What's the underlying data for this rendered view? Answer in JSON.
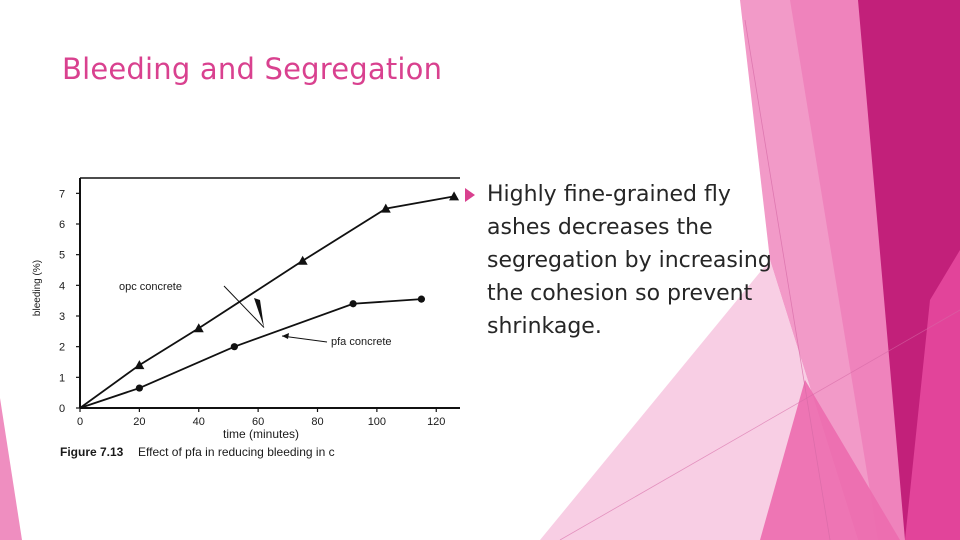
{
  "slide": {
    "title": "Bleeding and Segregation",
    "bullet_text": "Highly fine-grained fly ashes decreases the segregation by increasing the cohesion so prevent shrinkage.",
    "accent_color": "#d9418f"
  },
  "chart_data": {
    "type": "line",
    "title": "",
    "caption_label": "Figure 7.13",
    "caption_text": "Effect of pfa in reducing bleeding in c",
    "xlabel": "time (minutes)",
    "ylabel": "bleeding (%)",
    "xlim": [
      0,
      128
    ],
    "ylim": [
      0,
      7.5
    ],
    "x_ticks": [
      0,
      20,
      40,
      60,
      80,
      100,
      120
    ],
    "y_ticks": [
      0,
      1,
      2,
      3,
      4,
      5,
      6,
      7
    ],
    "grid": false,
    "series": [
      {
        "name": "opc concrete",
        "marker": "triangle",
        "x": [
          0,
          20,
          40,
          75,
          103,
          126
        ],
        "y": [
          0,
          1.4,
          2.6,
          4.8,
          6.5,
          6.9
        ]
      },
      {
        "name": "pfa concrete",
        "marker": "circle",
        "x": [
          0,
          20,
          52,
          92,
          115
        ],
        "y": [
          0,
          0.65,
          2.0,
          3.4,
          3.55
        ]
      }
    ]
  }
}
